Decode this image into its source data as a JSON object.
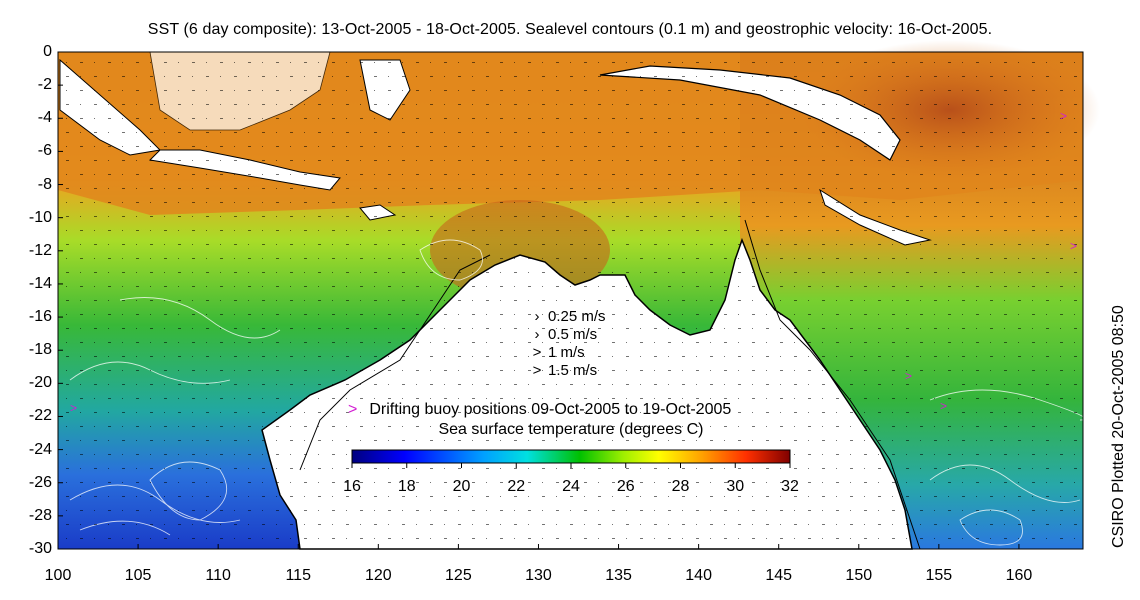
{
  "title": "SST (6 day composite): 13-Oct-2005 - 18-Oct-2005. Sealevel contours (0.1 m) and geostrophic velocity: 16-Oct-2005.",
  "credit": "CSIRO Plotted 20-Oct-2005 08:50",
  "axes": {
    "y_labels": [
      "0",
      "-2",
      "-4",
      "-6",
      "-8",
      "-10",
      "-12",
      "-14",
      "-16",
      "-18",
      "-20",
      "-22",
      "-24",
      "-26",
      "-28",
      "-30"
    ],
    "x_labels": [
      "100",
      "105",
      "110",
      "115",
      "120",
      "125",
      "130",
      "135",
      "140",
      "145",
      "150",
      "155",
      "160"
    ],
    "lon_range": [
      100,
      164
    ],
    "lat_range": [
      -30,
      0
    ]
  },
  "velocity_legend": [
    {
      "arrow": "›",
      "label": "0.25 m/s"
    },
    {
      "arrow": "›",
      "label": "0.5 m/s"
    },
    {
      "arrow": ">",
      "label": "1 m/s"
    },
    {
      "arrow": ">",
      "label": "1.5 m/s"
    }
  ],
  "buoy_legend": {
    "marker": ">",
    "label": "Drifting buoy positions 09-Oct-2005 to 19-Oct-2005",
    "color": "#d21ed2"
  },
  "colorbar": {
    "title": "Sea surface temperature (degrees C)",
    "labels": [
      "16",
      "18",
      "20",
      "22",
      "24",
      "26",
      "28",
      "30",
      "32"
    ],
    "range": [
      16,
      32
    ],
    "colors": [
      "#00007f",
      "#0000ff",
      "#007fff",
      "#00ffff",
      "#00c800",
      "#7fff00",
      "#ffff00",
      "#ff7f00",
      "#ff0000",
      "#7f0000"
    ]
  },
  "palette": {
    "warm": "#e8861e",
    "hot": "#c85a14",
    "green": "#3cb43c",
    "cool": "#2a6edc",
    "land": "#ffffff",
    "coast": "#000000"
  }
}
